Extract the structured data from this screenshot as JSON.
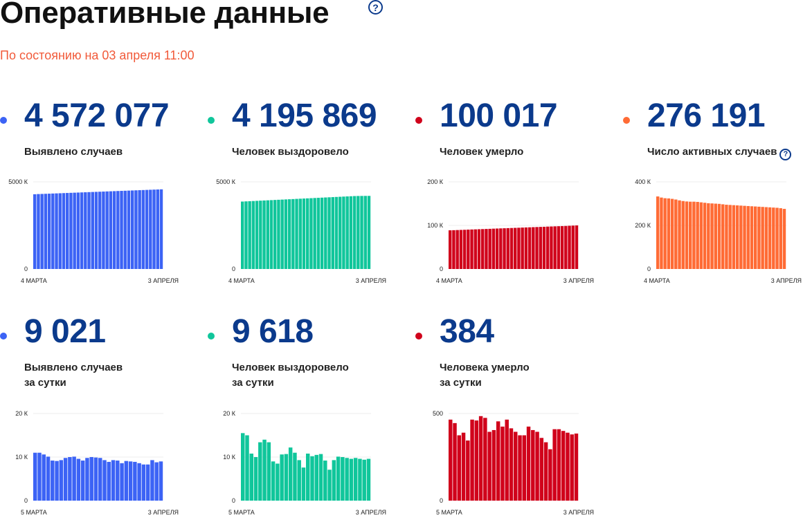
{
  "header": {
    "title": "Оперативные данные",
    "help_glyph": "?",
    "subtitle": "По состоянию на 03 апреля 11:00"
  },
  "stats": [
    {
      "id": "cases",
      "value": "4 572 077",
      "label": "Выявлено случаев",
      "color": "#3c63f5",
      "chart_data": {
        "type": "bar",
        "yticks": [
          0,
          5000
        ],
        "ytick_labels": [
          "0",
          "5000 К"
        ],
        "ylim": [
          0,
          5000
        ],
        "xlabels": [
          "4 МАРТА",
          "3 АПРЕЛЯ"
        ],
        "values": [
          4290,
          4300,
          4307,
          4315,
          4323,
          4331,
          4339,
          4347,
          4355,
          4363,
          4371,
          4379,
          4387,
          4395,
          4403,
          4411,
          4419,
          4427,
          4435,
          4443,
          4451,
          4459,
          4467,
          4475,
          4483,
          4491,
          4499,
          4507,
          4515,
          4523,
          4531,
          4539,
          4547,
          4555,
          4563,
          4572
        ]
      }
    },
    {
      "id": "recovered",
      "value": "4 195 869",
      "label": "Человек выздоровело",
      "color": "#10c69b",
      "chart_data": {
        "type": "bar",
        "yticks": [
          0,
          5000
        ],
        "ytick_labels": [
          "0",
          "5000 К"
        ],
        "ylim": [
          0,
          5000
        ],
        "xlabels": [
          "4 МАРТА",
          "3 АПРЕЛЯ"
        ],
        "values": [
          3870,
          3881,
          3891,
          3901,
          3911,
          3922,
          3932,
          3942,
          3952,
          3962,
          3973,
          3983,
          3993,
          4003,
          4013,
          4024,
          4034,
          4044,
          4054,
          4064,
          4075,
          4085,
          4095,
          4105,
          4115,
          4125,
          4135,
          4145,
          4155,
          4165,
          4175,
          4185,
          4190,
          4193,
          4195,
          4196
        ]
      }
    },
    {
      "id": "deaths",
      "value": "100 017",
      "label": "Человек умерло",
      "color": "#d0021b",
      "chart_data": {
        "type": "bar",
        "yticks": [
          0,
          100,
          200
        ],
        "ytick_labels": [
          "0",
          "100 К",
          "200 К"
        ],
        "ylim": [
          0,
          200
        ],
        "xlabels": [
          "4 МАРТА",
          "3 АПРЕЛЯ"
        ],
        "values": [
          88.8,
          89.1,
          89.4,
          89.7,
          90.0,
          90.4,
          90.7,
          91.0,
          91.3,
          91.6,
          91.9,
          92.2,
          92.6,
          92.9,
          93.2,
          93.5,
          93.8,
          94.1,
          94.4,
          94.7,
          95.1,
          95.4,
          95.7,
          96.0,
          96.3,
          96.6,
          96.9,
          97.3,
          97.6,
          97.9,
          98.2,
          98.5,
          98.8,
          99.2,
          99.6,
          100.0
        ]
      }
    },
    {
      "id": "active",
      "value": "276 191",
      "label": "Число активных случаев",
      "color": "#ff6b35",
      "chart_data": {
        "type": "bar",
        "yticks": [
          0,
          200,
          400
        ],
        "ytick_labels": [
          "0",
          "200 К",
          "400 К"
        ],
        "ylim": [
          0,
          400
        ],
        "xlabels": [
          "4 МАРТА",
          "3 АПРЕЛЯ"
        ],
        "values": [
          333,
          328,
          325,
          324,
          322,
          319,
          315,
          312,
          310,
          309,
          309,
          308,
          306,
          304,
          302,
          301,
          300,
          299,
          297,
          295,
          294,
          293,
          292,
          291,
          290,
          289,
          288,
          287,
          286,
          285,
          284,
          283,
          282,
          281,
          279,
          276
        ]
      }
    }
  ],
  "daily": [
    {
      "id": "daily-cases",
      "value": "9 021",
      "label_line1": "Выявлено случаев",
      "label_line2": "за сутки",
      "color": "#3c63f5",
      "chart_data": {
        "type": "bar",
        "yticks": [
          0,
          10,
          20
        ],
        "ytick_labels": [
          "0",
          "10 К",
          "20 К"
        ],
        "ylim": [
          0,
          20
        ],
        "xlabels": [
          "5 МАРТА",
          "3 АПРЕЛЯ"
        ],
        "values": [
          11.0,
          11.0,
          10.6,
          10.1,
          9.2,
          9.1,
          9.3,
          9.8,
          10.0,
          10.1,
          9.6,
          9.2,
          9.8,
          10.0,
          9.9,
          9.8,
          9.3,
          8.9,
          9.3,
          9.2,
          8.6,
          9.1,
          9.0,
          8.9,
          8.6,
          8.3,
          8.3,
          9.3,
          8.8,
          9.0
        ]
      }
    },
    {
      "id": "daily-recovered",
      "value": "9 618",
      "label_line1": "Человек выздоровело",
      "label_line2": "за сутки",
      "color": "#10c69b",
      "chart_data": {
        "type": "bar",
        "yticks": [
          0,
          10,
          20
        ],
        "ytick_labels": [
          "0",
          "10 К",
          "20 К"
        ],
        "ylim": [
          0,
          20
        ],
        "xlabels": [
          "5 МАРТА",
          "3 АПРЕЛЯ"
        ],
        "values": [
          15.5,
          15.0,
          10.8,
          10.0,
          13.4,
          14.0,
          13.4,
          9.0,
          8.5,
          10.6,
          10.7,
          12.2,
          11.0,
          9.3,
          7.6,
          10.8,
          10.2,
          10.5,
          10.7,
          9.2,
          7.1,
          9.3,
          10.1,
          10.0,
          9.8,
          9.6,
          9.8,
          9.6,
          9.4,
          9.6
        ]
      }
    },
    {
      "id": "daily-deaths",
      "value": "384",
      "label_line1": "Человека умерло",
      "label_line2": "за сутки",
      "color": "#d0021b",
      "chart_data": {
        "type": "bar",
        "yticks": [
          0,
          500
        ],
        "ytick_labels": [
          "0",
          "500"
        ],
        "ylim": [
          0,
          500
        ],
        "xlabels": [
          "5 МАРТА",
          "3 АПРЕЛЯ"
        ],
        "values": [
          465,
          445,
          375,
          390,
          345,
          465,
          460,
          485,
          475,
          395,
          405,
          455,
          425,
          465,
          415,
          395,
          375,
          375,
          425,
          405,
          395,
          360,
          335,
          295,
          410,
          410,
          400,
          390,
          380,
          385
        ]
      }
    }
  ]
}
